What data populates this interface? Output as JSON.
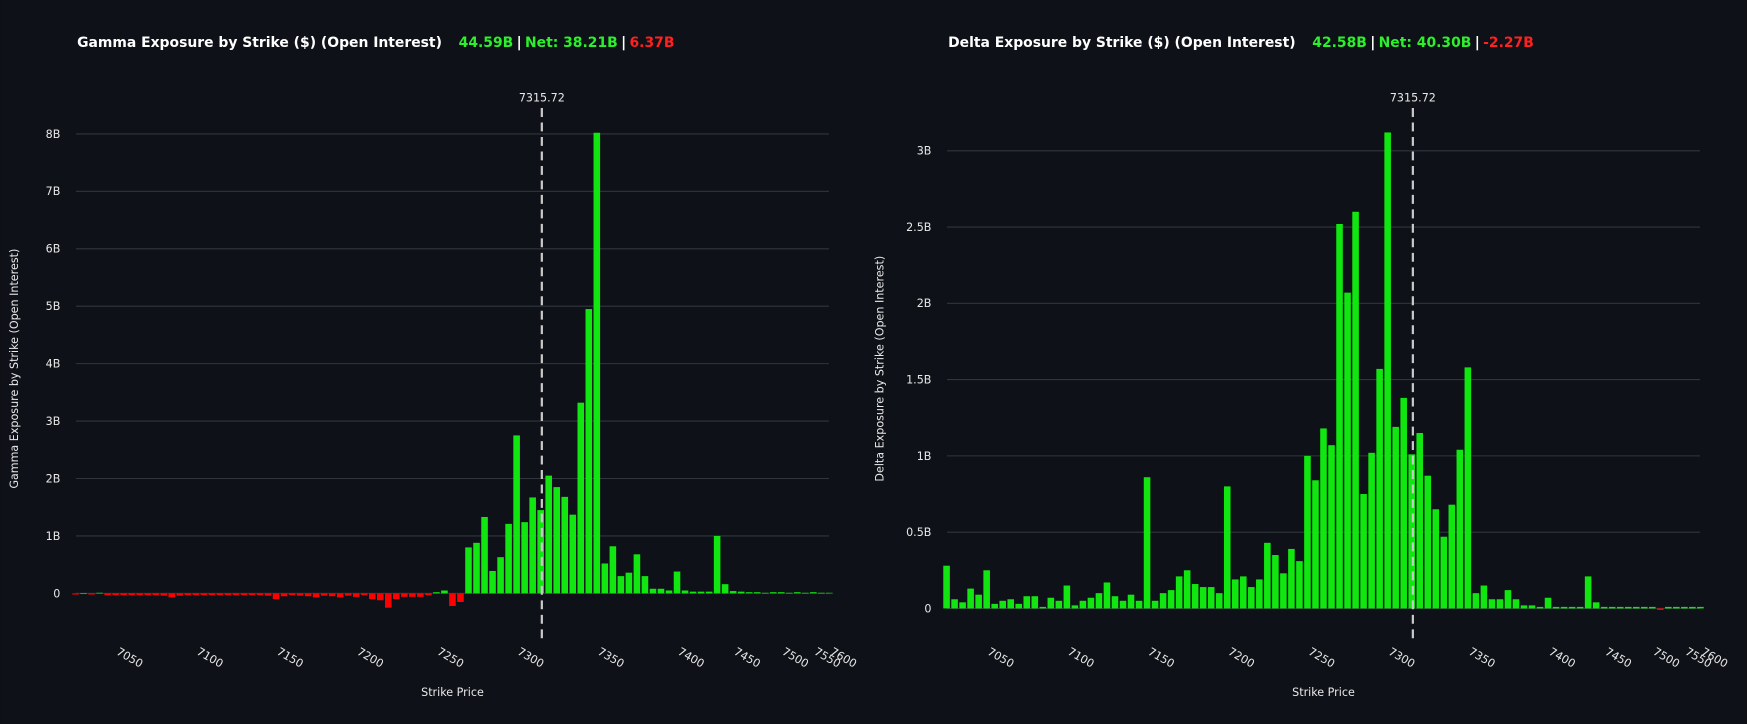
{
  "chart_data": [
    {
      "type": "bar",
      "title": "Gamma Exposure by Strike ($) (Open Interest)",
      "summary": [
        {
          "text": "44.59B",
          "color": "#2cf02c"
        },
        {
          "text": "Net: 38.21B",
          "color": "#2cf02c"
        },
        {
          "text": "6.37B",
          "color": "#ff2020"
        }
      ],
      "separator": "|",
      "xlabel": "Strike Price",
      "ylabel": "Gamma Exposure by Strike (Open Interest)",
      "x": [
        7025,
        7030,
        7035,
        7040,
        7045,
        7050,
        7055,
        7060,
        7065,
        7070,
        7075,
        7080,
        7085,
        7090,
        7095,
        7100,
        7105,
        7110,
        7115,
        7120,
        7125,
        7130,
        7135,
        7140,
        7145,
        7150,
        7155,
        7160,
        7165,
        7170,
        7175,
        7180,
        7185,
        7190,
        7195,
        7200,
        7205,
        7210,
        7215,
        7220,
        7225,
        7230,
        7235,
        7240,
        7245,
        7250,
        7255,
        7260,
        7265,
        7270,
        7275,
        7280,
        7285,
        7290,
        7295,
        7300,
        7305,
        7310,
        7315,
        7320,
        7325,
        7330,
        7335,
        7340,
        7345,
        7350,
        7355,
        7360,
        7365,
        7370,
        7375,
        7380,
        7385,
        7390,
        7395,
        7400,
        7405,
        7410,
        7415,
        7420,
        7425,
        7430,
        7450,
        7460,
        7470,
        7475,
        7480,
        7490,
        7500,
        7510,
        7520,
        7525,
        7550,
        7575,
        7600
      ],
      "values": [
        -0.02,
        0,
        -0.02,
        0.01,
        -0.03,
        -0.03,
        -0.03,
        -0.03,
        -0.03,
        -0.03,
        -0.03,
        -0.04,
        -0.07,
        -0.04,
        -0.03,
        -0.03,
        -0.03,
        -0.03,
        -0.03,
        -0.03,
        -0.03,
        -0.03,
        -0.03,
        -0.03,
        -0.04,
        -0.1,
        -0.05,
        -0.03,
        -0.04,
        -0.05,
        -0.07,
        -0.04,
        -0.05,
        -0.07,
        -0.04,
        -0.06,
        -0.03,
        -0.1,
        -0.12,
        -0.25,
        -0.1,
        -0.06,
        -0.06,
        -0.06,
        -0.03,
        0.02,
        0.05,
        -0.22,
        -0.15,
        0.8,
        0.88,
        1.33,
        0.39,
        0.63,
        1.21,
        2.75,
        1.24,
        1.67,
        1.45,
        2.05,
        1.85,
        1.68,
        1.37,
        3.32,
        4.95,
        8.02,
        0.52,
        0.82,
        0.3,
        0.36,
        0.68,
        0.3,
        0.08,
        0.08,
        0.05,
        0.38,
        0.05,
        0.03,
        0.03,
        0.03,
        1.0,
        0.16,
        0.04,
        0.03,
        0.02,
        0.02,
        0.01,
        0.02,
        0.02,
        0.01,
        0.02,
        0.01,
        0.02,
        0.01,
        0.01
      ],
      "positive_color": "#11e611",
      "negative_color": "#ff0000",
      "spot": 7315.72,
      "xticks": [
        7050,
        7100,
        7150,
        7200,
        7250,
        7300,
        7350,
        7400,
        7450,
        7500,
        7550,
        7600
      ],
      "ylim": [
        -0.82,
        8.45
      ],
      "yticks": [
        0,
        {
          "value": 1,
          "label": "1B"
        },
        {
          "value": 2,
          "label": "2B"
        },
        {
          "value": 3,
          "label": "3B"
        },
        {
          "value": 4,
          "label": "4B"
        },
        {
          "value": 5,
          "label": "5B"
        },
        {
          "value": 6,
          "label": "6B"
        },
        {
          "value": 7,
          "label": "7B"
        },
        {
          "value": 8,
          "label": "8B"
        }
      ],
      "grid": true
    },
    {
      "type": "bar",
      "title": "Delta Exposure by Strike ($) (Open Interest)",
      "summary": [
        {
          "text": "42.58B",
          "color": "#2cf02c"
        },
        {
          "text": "Net: 40.30B",
          "color": "#2cf02c"
        },
        {
          "text": "-2.27B",
          "color": "#ff2020"
        }
      ],
      "separator": "|",
      "xlabel": "Strike Price",
      "ylabel": "Delta Exposure by Strike (Open Interest)",
      "x": [
        7025,
        7030,
        7035,
        7040,
        7045,
        7050,
        7055,
        7060,
        7065,
        7070,
        7075,
        7080,
        7085,
        7090,
        7095,
        7100,
        7105,
        7110,
        7115,
        7120,
        7125,
        7130,
        7135,
        7140,
        7145,
        7150,
        7155,
        7160,
        7165,
        7170,
        7175,
        7180,
        7185,
        7190,
        7195,
        7200,
        7205,
        7210,
        7215,
        7220,
        7225,
        7230,
        7235,
        7240,
        7245,
        7250,
        7255,
        7260,
        7265,
        7270,
        7275,
        7280,
        7285,
        7290,
        7295,
        7300,
        7305,
        7310,
        7315,
        7320,
        7325,
        7330,
        7335,
        7340,
        7345,
        7350,
        7355,
        7360,
        7365,
        7370,
        7375,
        7380,
        7385,
        7390,
        7395,
        7400,
        7405,
        7410,
        7415,
        7420,
        7425,
        7430,
        7450,
        7460,
        7470,
        7475,
        7480,
        7490,
        7500,
        7510,
        7520,
        7525,
        7550,
        7575,
        7600
      ],
      "values": [
        0.28,
        0.06,
        0.04,
        0.13,
        0.09,
        0.25,
        0.03,
        0.05,
        0.06,
        0.03,
        0.08,
        0.08,
        0.01,
        0.07,
        0.05,
        0.15,
        0.02,
        0.05,
        0.07,
        0.1,
        0.17,
        0.08,
        0.05,
        0.09,
        0.05,
        0.86,
        0.05,
        0.1,
        0.12,
        0.21,
        0.25,
        0.16,
        0.14,
        0.14,
        0.1,
        0.8,
        0.19,
        0.21,
        0.14,
        0.19,
        0.43,
        0.35,
        0.23,
        0.39,
        0.31,
        1.0,
        0.84,
        1.18,
        1.07,
        2.52,
        2.07,
        2.6,
        0.75,
        1.02,
        1.57,
        3.12,
        1.19,
        1.38,
        1.01,
        1.15,
        0.87,
        0.65,
        0.47,
        0.68,
        1.04,
        1.58,
        0.1,
        0.15,
        0.06,
        0.06,
        0.12,
        0.06,
        0.02,
        0.02,
        0.01,
        0.07,
        0.01,
        0.01,
        0.01,
        0.01,
        0.21,
        0.04,
        0.01,
        0.01,
        0.01,
        0.01,
        0.01,
        0.01,
        0.01,
        -0.01,
        0.01,
        0.01,
        0.01,
        0.01,
        0.01
      ],
      "positive_color": "#11e611",
      "negative_color": "#ff0000",
      "spot": 7315.72,
      "xticks": [
        7050,
        7100,
        7150,
        7200,
        7250,
        7300,
        7350,
        7400,
        7450,
        7500,
        7550,
        7600
      ],
      "ylim": [
        -0.21,
        3.28
      ],
      "yticks": [
        0,
        {
          "value": 0.5,
          "label": "0.5B"
        },
        {
          "value": 1,
          "label": "1B"
        },
        {
          "value": 1.5,
          "label": "1.5B"
        },
        {
          "value": 2,
          "label": "2B"
        },
        {
          "value": 2.5,
          "label": "2.5B"
        },
        {
          "value": 3,
          "label": "3B"
        }
      ],
      "grid": true
    }
  ]
}
